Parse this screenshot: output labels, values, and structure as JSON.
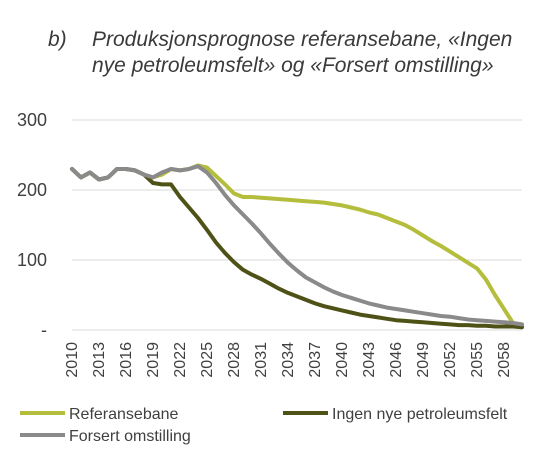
{
  "chart_data": {
    "type": "line",
    "panel_label": "b)",
    "title_lines": [
      "Produksjonsprognose referansebane, «Ingen",
      "nye petroleumsfelt» og «Forsert omstilling»"
    ],
    "ylim": [
      0,
      300
    ],
    "y_ticks": [
      "-",
      "100",
      "200",
      "300"
    ],
    "y_tick_values": [
      0,
      100,
      200,
      300
    ],
    "x_tick_labels": [
      "2010",
      "2013",
      "2016",
      "2019",
      "2022",
      "2025",
      "2028",
      "2031",
      "2034",
      "2037",
      "2040",
      "2043",
      "2046",
      "2049",
      "2052",
      "2055",
      "2058"
    ],
    "x": [
      2010,
      2011,
      2012,
      2013,
      2014,
      2015,
      2016,
      2017,
      2018,
      2019,
      2020,
      2021,
      2022,
      2023,
      2024,
      2025,
      2026,
      2027,
      2028,
      2029,
      2030,
      2031,
      2032,
      2033,
      2034,
      2035,
      2036,
      2037,
      2038,
      2039,
      2040,
      2041,
      2042,
      2043,
      2044,
      2045,
      2046,
      2047,
      2048,
      2049,
      2050,
      2051,
      2052,
      2053,
      2054,
      2055,
      2056,
      2057,
      2058,
      2059,
      2060
    ],
    "xlim": [
      2010,
      2060
    ],
    "grid": true,
    "legend_position": "bottom",
    "series": [
      {
        "name": "Referansebane",
        "color": "#b5bd3c",
        "values": [
          230,
          218,
          225,
          215,
          218,
          230,
          230,
          228,
          222,
          218,
          222,
          230,
          228,
          230,
          235,
          232,
          220,
          208,
          195,
          190,
          190,
          189,
          188,
          187,
          186,
          185,
          184,
          183,
          182,
          180,
          178,
          175,
          172,
          168,
          165,
          160,
          155,
          150,
          143,
          135,
          127,
          120,
          112,
          104,
          96,
          88,
          72,
          50,
          30,
          10,
          5
        ]
      },
      {
        "name": "Ingen nye petroleumsfelt",
        "color": "#4f5216",
        "values": [
          230,
          218,
          225,
          215,
          218,
          230,
          230,
          228,
          222,
          210,
          208,
          208,
          190,
          175,
          160,
          143,
          125,
          110,
          97,
          86,
          79,
          73,
          66,
          59,
          53,
          48,
          43,
          38,
          34,
          31,
          28,
          25,
          22,
          20,
          18,
          16,
          14,
          13,
          12,
          11,
          10,
          9,
          8,
          7,
          7,
          6,
          6,
          5,
          5,
          5,
          4
        ]
      },
      {
        "name": "Forsert omstilling",
        "color": "#8a8a8a",
        "values": [
          230,
          218,
          225,
          215,
          218,
          230,
          230,
          228,
          222,
          218,
          225,
          230,
          228,
          230,
          234,
          225,
          210,
          193,
          178,
          165,
          152,
          138,
          123,
          109,
          96,
          85,
          75,
          68,
          61,
          55,
          50,
          46,
          42,
          38,
          35,
          32,
          30,
          28,
          26,
          24,
          22,
          20,
          19,
          17,
          15,
          14,
          13,
          12,
          11,
          10,
          8
        ]
      }
    ]
  }
}
